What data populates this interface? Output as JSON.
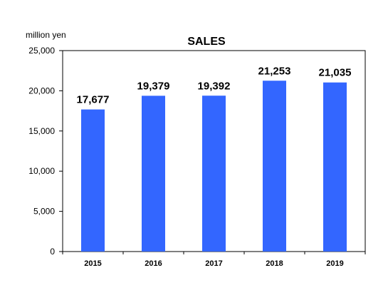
{
  "chart_data": {
    "type": "bar",
    "title": "SALES",
    "ylabel": "million yen",
    "xlabel": "",
    "categories": [
      "2015",
      "2016",
      "2017",
      "2018",
      "2019"
    ],
    "values": [
      17677,
      19379,
      19392,
      21253,
      21035
    ],
    "data_labels": [
      "17,677",
      "19,379",
      "19,392",
      "21,253",
      "21,035"
    ],
    "ylim": [
      0,
      25000
    ],
    "yticks": [
      0,
      5000,
      10000,
      15000,
      20000,
      25000
    ],
    "ytick_labels": [
      "0",
      "5,000",
      "10,000",
      "15,000",
      "20,000",
      "25,000"
    ],
    "grid": false,
    "legend": "none",
    "bar_color": "#3366ff"
  }
}
